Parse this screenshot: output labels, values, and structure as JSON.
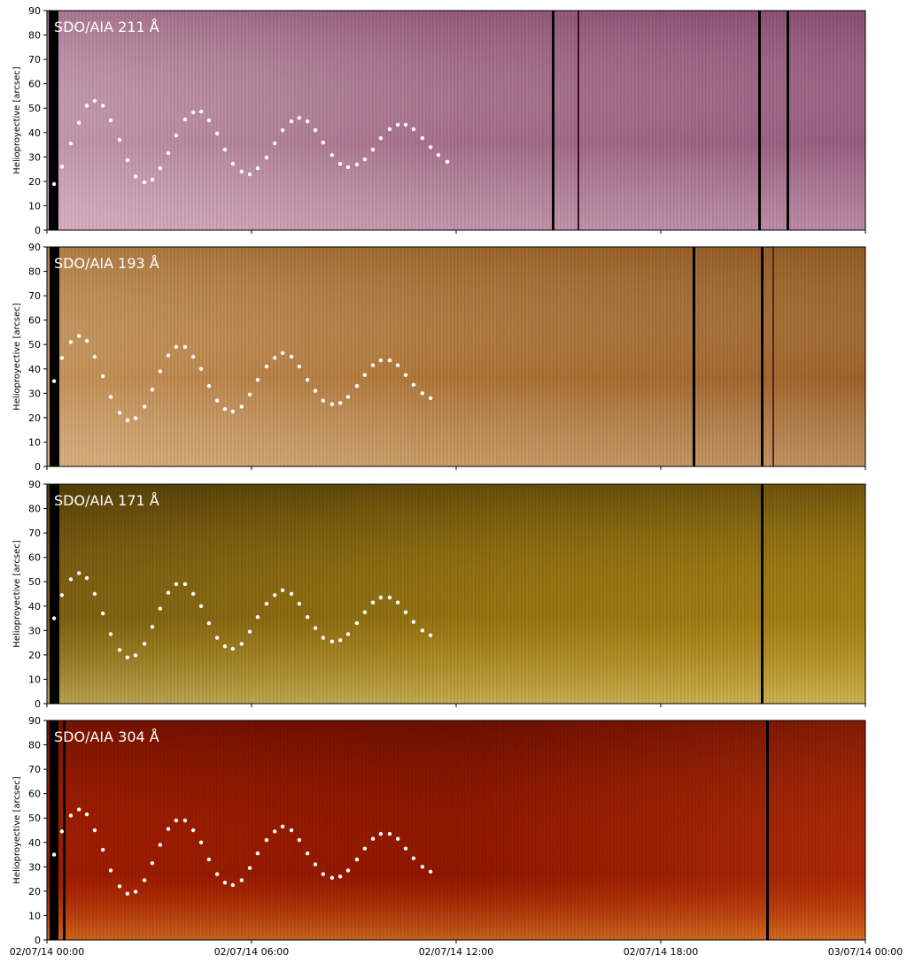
{
  "chart_data": [
    {
      "type": "scatter",
      "title": "SDO/AIA 211 Å",
      "ylabel": "Helioproyective [arcsec]",
      "ylim": [
        0,
        90
      ],
      "yticks": [
        0,
        10,
        20,
        30,
        40,
        50,
        60,
        70,
        80,
        90
      ],
      "xlim": [
        0,
        24
      ],
      "color": "#ffffff",
      "x": [
        0.21,
        0.44,
        0.7,
        0.94,
        1.17,
        1.4,
        1.64,
        1.87,
        2.13,
        2.36,
        2.6,
        2.86,
        3.09,
        3.32,
        3.56,
        3.79,
        4.05,
        4.29,
        4.52,
        4.75,
        4.99,
        5.22,
        5.45,
        5.71,
        5.95,
        6.18,
        6.44,
        6.68,
        6.91,
        7.17,
        7.4,
        7.64,
        7.87,
        8.1,
        8.36,
        8.6,
        8.83,
        9.09,
        9.32,
        9.56,
        9.79,
        10.05,
        10.29,
        10.52,
        10.75,
        11.01,
        11.25,
        11.48,
        11.74
      ],
      "values": [
        18.9,
        26,
        35.5,
        44,
        51,
        53,
        51,
        45,
        37,
        28.7,
        22,
        19.6,
        20.7,
        25.4,
        31.6,
        38.8,
        45.4,
        48.3,
        48.6,
        45,
        39.6,
        33,
        27.2,
        24,
        22.9,
        25.4,
        29.8,
        35.6,
        41,
        44.6,
        46,
        44.6,
        41,
        35.9,
        30.8,
        27.2,
        25.8,
        26.9,
        29,
        33,
        37.7,
        41.4,
        43.2,
        43.2,
        41.4,
        37.7,
        34,
        30.8,
        28
      ]
    },
    {
      "type": "scatter",
      "title": "SDO/AIA 193 Å",
      "ylabel": "Helioproyective [arcsec]",
      "ylim": [
        0,
        90
      ],
      "yticks": [
        0,
        10,
        20,
        30,
        40,
        50,
        60,
        70,
        80,
        90
      ],
      "xlim": [
        0,
        24
      ],
      "color": "#ffffff",
      "x": [
        0.21,
        0.44,
        0.7,
        0.94,
        1.17,
        1.4,
        1.64,
        1.87,
        2.13,
        2.36,
        2.6,
        2.86,
        3.09,
        3.32,
        3.56,
        3.79,
        4.05,
        4.29,
        4.52,
        4.75,
        4.99,
        5.22,
        5.45,
        5.71,
        5.95,
        6.18,
        6.44,
        6.68,
        6.91,
        7.17,
        7.4,
        7.64,
        7.87,
        8.1,
        8.36,
        8.6,
        8.83,
        9.09,
        9.32,
        9.56,
        9.79,
        10.05,
        10.29,
        10.52,
        10.75,
        11.01,
        11.25
      ],
      "values": [
        35,
        44.5,
        51,
        53.5,
        51.5,
        45,
        37,
        28.5,
        22,
        19,
        19.8,
        24.5,
        31.5,
        39,
        45.5,
        49,
        49,
        45,
        40,
        33,
        27,
        23.5,
        22.5,
        24.5,
        29.5,
        35.5,
        41,
        44.5,
        46.5,
        45,
        41,
        35.5,
        31,
        27,
        25.5,
        26,
        28.5,
        33,
        37.5,
        41.5,
        43.5,
        43.5,
        41.5,
        37.5,
        33.5,
        30,
        28
      ]
    },
    {
      "type": "scatter",
      "title": "SDO/AIA 171 Å",
      "ylabel": "Helioproyective [arcsec]",
      "ylim": [
        0,
        90
      ],
      "yticks": [
        0,
        10,
        20,
        30,
        40,
        50,
        60,
        70,
        80,
        90
      ],
      "xlim": [
        0,
        24
      ],
      "color": "#ffffff",
      "x": [
        0.21,
        0.44,
        0.7,
        0.94,
        1.17,
        1.4,
        1.64,
        1.87,
        2.13,
        2.36,
        2.6,
        2.86,
        3.09,
        3.32,
        3.56,
        3.79,
        4.05,
        4.29,
        4.52,
        4.75,
        4.99,
        5.22,
        5.45,
        5.71,
        5.95,
        6.18,
        6.44,
        6.68,
        6.91,
        7.17,
        7.4,
        7.64,
        7.87,
        8.1,
        8.36,
        8.6,
        8.83,
        9.09,
        9.32,
        9.56,
        9.79,
        10.05,
        10.29,
        10.52,
        10.75,
        11.01,
        11.25
      ],
      "values": [
        35,
        44.5,
        51,
        53.5,
        51.5,
        45,
        37,
        28.5,
        22,
        19,
        19.8,
        24.5,
        31.5,
        39,
        45.5,
        49,
        49,
        45,
        40,
        33,
        27,
        23.5,
        22.5,
        24.5,
        29.5,
        35.5,
        41,
        44.5,
        46.5,
        45,
        41,
        35.5,
        31,
        27,
        25.5,
        26,
        28.5,
        33,
        37.5,
        41.5,
        43.5,
        43.5,
        41.5,
        37.5,
        33.5,
        30,
        28
      ]
    },
    {
      "type": "scatter",
      "title": "SDO/AIA 304 Å",
      "ylabel": "Helioproyective [arcsec]",
      "ylim": [
        0,
        90
      ],
      "yticks": [
        0,
        10,
        20,
        30,
        40,
        50,
        60,
        70,
        80,
        90
      ],
      "xlim": [
        0,
        24
      ],
      "color": "#ffffff",
      "xticks": [
        {
          "value": 0,
          "label": "02/07/14 00:00"
        },
        {
          "value": 6,
          "label": "02/07/14 06:00"
        },
        {
          "value": 12,
          "label": "02/07/14 12:00"
        },
        {
          "value": 18,
          "label": "02/07/14 18:00"
        },
        {
          "value": 24,
          "label": "03/07/14 00:00"
        }
      ],
      "x": [
        0.21,
        0.44,
        0.7,
        0.94,
        1.17,
        1.4,
        1.64,
        1.87,
        2.13,
        2.36,
        2.6,
        2.86,
        3.09,
        3.32,
        3.56,
        3.79,
        4.05,
        4.29,
        4.52,
        4.75,
        4.99,
        5.22,
        5.45,
        5.71,
        5.95,
        6.18,
        6.44,
        6.68,
        6.91,
        7.17,
        7.4,
        7.64,
        7.87,
        8.1,
        8.36,
        8.6,
        8.83,
        9.09,
        9.32,
        9.56,
        9.79,
        10.05,
        10.29,
        10.52,
        10.75,
        11.01,
        11.25
      ],
      "values": [
        35,
        44.5,
        51,
        53.5,
        51.5,
        45,
        37,
        28.5,
        22,
        19,
        19.8,
        24.5,
        31.5,
        39,
        45.5,
        49,
        49,
        45,
        40,
        33,
        27,
        23.5,
        22.5,
        24.5,
        29.5,
        35.5,
        41,
        44.5,
        46.5,
        45,
        41,
        35.5,
        31,
        27,
        25.5,
        26,
        28.5,
        33,
        37.5,
        41.5,
        43.5,
        43.5,
        41.5,
        37.5,
        33.5,
        30,
        28
      ]
    }
  ]
}
